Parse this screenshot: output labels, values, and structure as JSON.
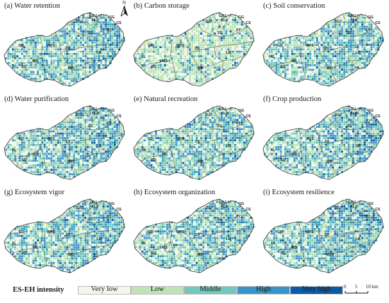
{
  "panels": [
    {
      "title": "(a) Water retention",
      "id": "water-retention",
      "seed": 11,
      "bias": 0.55
    },
    {
      "title": "(b) Carbon storage",
      "id": "carbon-storage",
      "seed": 23,
      "bias": 0.25
    },
    {
      "title": "(c) Soil conservation",
      "id": "soil-conservation",
      "seed": 37,
      "bias": 0.45
    },
    {
      "title": "(d) Water purification",
      "id": "water-purification",
      "seed": 41,
      "bias": 0.55
    },
    {
      "title": "(e) Natural recreation",
      "id": "natural-recreation",
      "seed": 53,
      "bias": 0.45
    },
    {
      "title": "(f) Crop production",
      "id": "crop-production",
      "seed": 67,
      "bias": 0.6
    },
    {
      "title": "(g) Ecosystem vigor",
      "id": "ecosystem-vigor",
      "seed": 71,
      "bias": 0.5
    },
    {
      "title": "(h) Ecosystem organization",
      "id": "ecosystem-organization",
      "seed": 83,
      "bias": 0.5
    },
    {
      "title": "(i) Ecosystem resilience",
      "id": "ecosystem-resilience",
      "seed": 97,
      "bias": 0.55
    }
  ],
  "region_labels": [
    "LDJ",
    "GG",
    "CS",
    "DJJ",
    "XLJ",
    "XY",
    "ZG",
    "GD",
    "LB",
    "WFS",
    "ZX",
    "XL",
    "MS",
    "SQ",
    "WD"
  ],
  "north_arrow": {
    "letter": "N"
  },
  "legend": {
    "title": "ES-EH intensity",
    "items": [
      {
        "label": "Very low",
        "color": "#f1f8ea"
      },
      {
        "label": "Low",
        "color": "#bfe3b4"
      },
      {
        "label": "Middle",
        "color": "#74c7bc"
      },
      {
        "label": "High",
        "color": "#3a93c6"
      },
      {
        "label": "Very high",
        "color": "#0d5aa4"
      }
    ]
  },
  "scale_bar": {
    "ticks": [
      "0",
      "5",
      "10 km"
    ]
  }
}
